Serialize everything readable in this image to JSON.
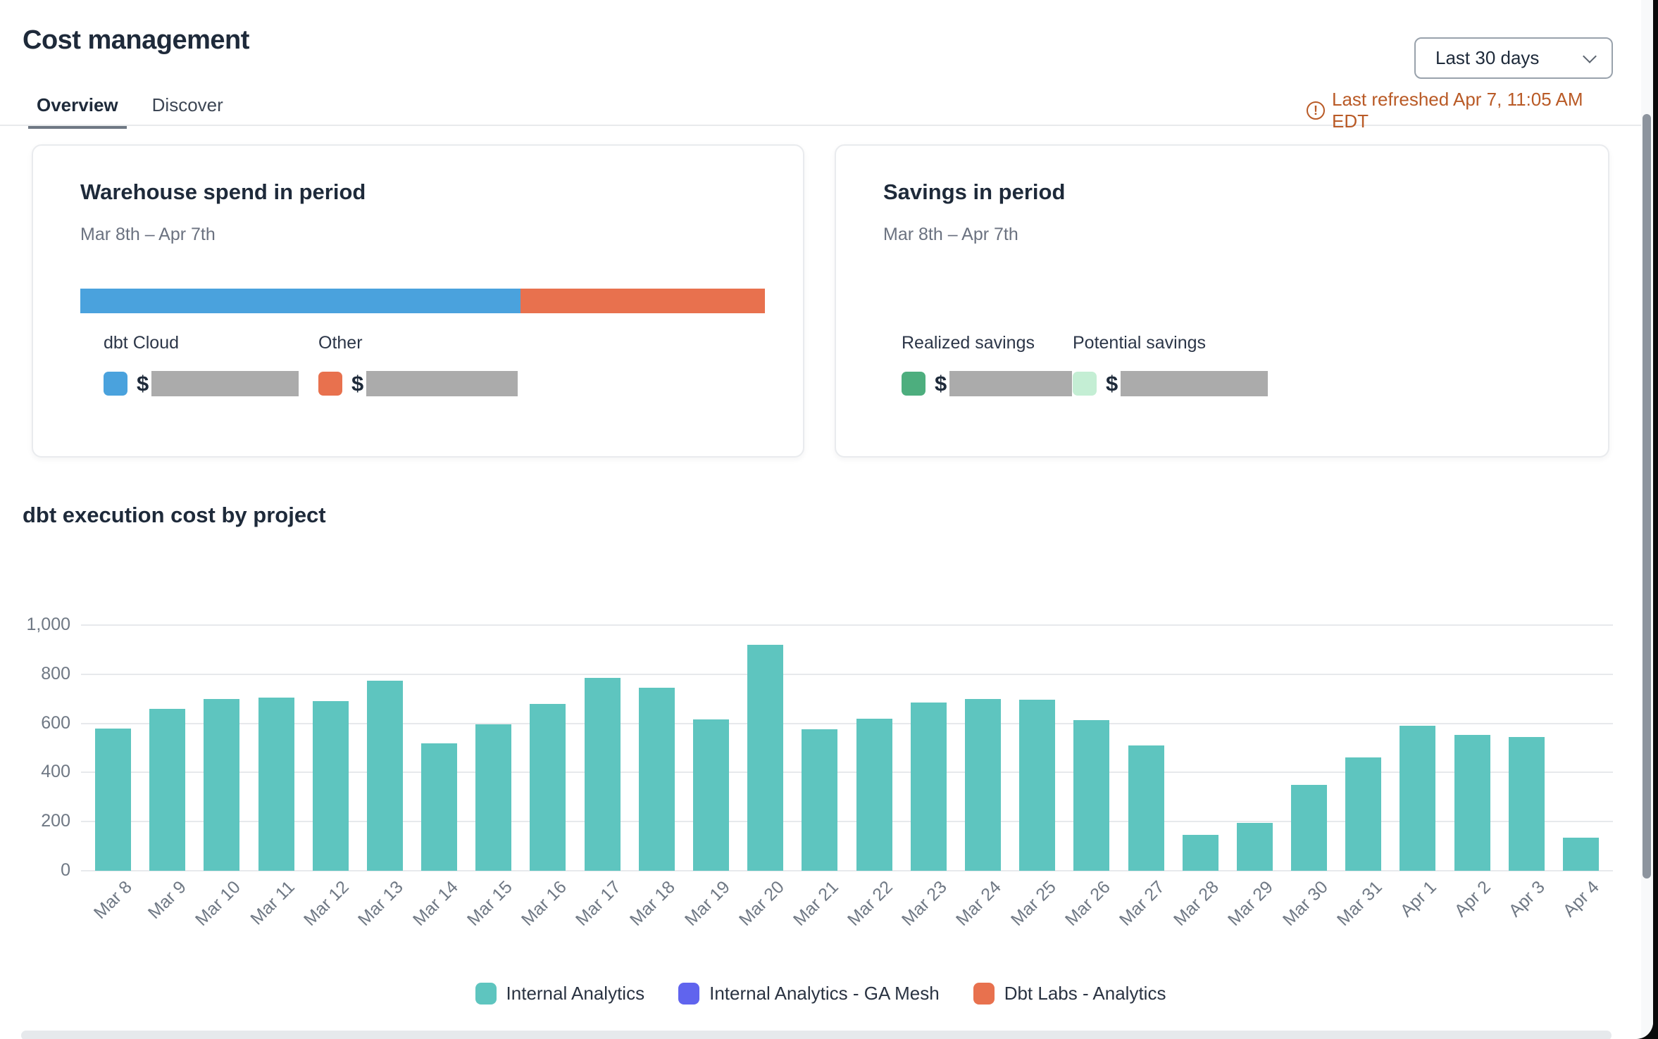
{
  "header": {
    "title": "Cost management",
    "tabs": [
      {
        "label": "Overview",
        "active": true
      },
      {
        "label": "Discover",
        "active": false
      }
    ],
    "period_dropdown": {
      "value": "Last 30 days"
    },
    "last_refreshed": {
      "icon": "alert-circle-icon",
      "text": "Last refreshed Apr 7, 11:05 AM EDT",
      "color": "#b95a26"
    }
  },
  "spend_card": {
    "title": "Warehouse spend in period",
    "subtitle": "Mar 8th – Apr 7th",
    "segments": [
      {
        "label": "dbt Cloud",
        "color": "#4aa2dd",
        "percent": 64.3,
        "currency": "$",
        "value": "redacted"
      },
      {
        "label": "Other",
        "color": "#e8714e",
        "percent": 35.7,
        "currency": "$",
        "value": "redacted"
      }
    ]
  },
  "savings_card": {
    "title": "Savings in period",
    "subtitle": "Mar 8th – Apr 7th",
    "entries": [
      {
        "label": "Realized savings",
        "color": "#4dae7e",
        "currency": "$",
        "value": "redacted"
      },
      {
        "label": "Potential savings",
        "color": "#c4eed4",
        "currency": "$",
        "value": "redacted"
      }
    ]
  },
  "chart_section": {
    "title": "dbt execution cost by project"
  },
  "chart_data": {
    "type": "bar",
    "title": "dbt execution cost by project",
    "categories": [
      "Mar 8",
      "Mar 9",
      "Mar 10",
      "Mar 11",
      "Mar 12",
      "Mar 13",
      "Mar 14",
      "Mar 15",
      "Mar 16",
      "Mar 17",
      "Mar 18",
      "Mar 19",
      "Mar 20",
      "Mar 21",
      "Mar 22",
      "Mar 23",
      "Mar 24",
      "Mar 25",
      "Mar 26",
      "Mar 27",
      "Mar 28",
      "Mar 29",
      "Mar 30",
      "Mar 31",
      "Apr 1",
      "Apr 2",
      "Apr 3",
      "Apr 4"
    ],
    "series": [
      {
        "name": "Internal Analytics",
        "color": "#5ec5bf",
        "values": [
          580,
          660,
          700,
          705,
          690,
          775,
          520,
          595,
          680,
          785,
          745,
          615,
          920,
          575,
          620,
          685,
          700,
          697,
          613,
          510,
          145,
          195,
          350,
          462,
          590,
          553,
          545,
          135
        ]
      }
    ],
    "legend": [
      {
        "label": "Internal Analytics",
        "color": "#5ec5bf"
      },
      {
        "label": "Internal Analytics - GA Mesh",
        "color": "#6064ee"
      },
      {
        "label": "Dbt Labs - Analytics",
        "color": "#e8714e"
      }
    ],
    "xlabel": "",
    "ylabel": "",
    "ylim": [
      0,
      1000
    ],
    "yticks": [
      0,
      200,
      400,
      600,
      800,
      1000
    ],
    "ytick_labels": [
      "0",
      "200",
      "400",
      "600",
      "800",
      "1,000"
    ],
    "grid": true,
    "legend_position": "bottom"
  }
}
